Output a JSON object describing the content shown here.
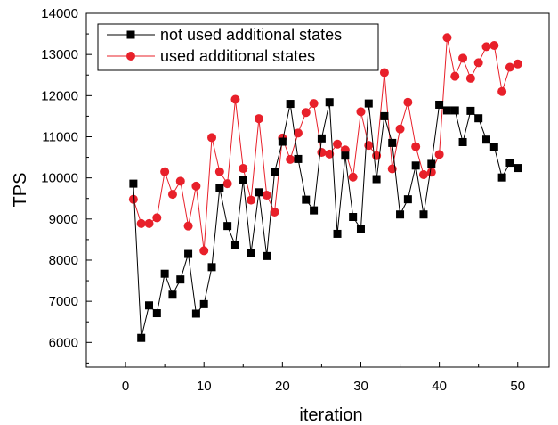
{
  "chart_data": {
    "type": "line",
    "xlabel": "iteration",
    "ylabel": "TPS",
    "xlim": [
      -5,
      54
    ],
    "ylim": [
      5400,
      14000
    ],
    "xticks": [
      0,
      10,
      20,
      30,
      40,
      50
    ],
    "yticks": [
      6000,
      7000,
      8000,
      9000,
      10000,
      11000,
      12000,
      13000,
      14000
    ],
    "legend_position": "top-left",
    "grid": false,
    "x": [
      1,
      2,
      3,
      4,
      5,
      6,
      7,
      8,
      9,
      10,
      11,
      12,
      13,
      14,
      15,
      16,
      17,
      18,
      19,
      20,
      21,
      22,
      23,
      24,
      25,
      26,
      27,
      28,
      29,
      30,
      31,
      32,
      33,
      34,
      35,
      36,
      37,
      38,
      39,
      40,
      41,
      42,
      43,
      44,
      45,
      46,
      47,
      48,
      49,
      50
    ],
    "series": [
      {
        "name": "not used additional states",
        "color": "#000000",
        "marker": "square",
        "values": [
          9860,
          6110,
          6900,
          6710,
          7670,
          7160,
          7530,
          8150,
          6700,
          6930,
          7830,
          9750,
          8830,
          8360,
          9950,
          8180,
          9650,
          8100,
          10140,
          10880,
          11800,
          10460,
          9470,
          9210,
          10960,
          11840,
          8640,
          10540,
          9050,
          8760,
          11810,
          9970,
          11500,
          10850,
          9110,
          9480,
          10300,
          9110,
          10340,
          11780,
          11640,
          11640,
          10870,
          11630,
          11450,
          10930,
          10760,
          10010,
          10370,
          10240
        ]
      },
      {
        "name": "used additional states",
        "color": "#e8202a",
        "marker": "circle",
        "values": [
          9480,
          8890,
          8890,
          9030,
          10150,
          9600,
          9920,
          8830,
          9800,
          8230,
          10980,
          10150,
          9860,
          11910,
          10230,
          9460,
          11440,
          9580,
          9170,
          10970,
          10450,
          11090,
          11590,
          11810,
          10620,
          10580,
          10820,
          10680,
          10020,
          11610,
          10790,
          10540,
          12560,
          10220,
          11190,
          11840,
          10760,
          10080,
          10140,
          10570,
          13410,
          12470,
          12910,
          12420,
          12800,
          13190,
          13220,
          12100,
          12690,
          12770
        ]
      }
    ]
  }
}
